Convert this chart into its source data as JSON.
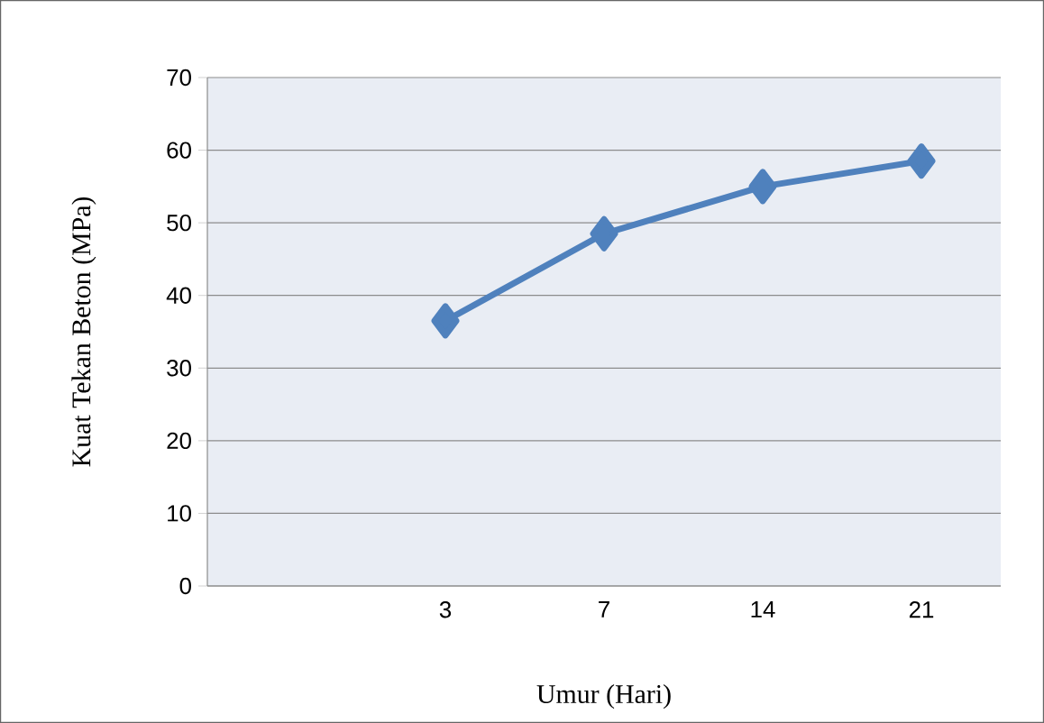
{
  "chart_data": {
    "type": "line",
    "xlabel": "Umur (Hari)",
    "ylabel": "Kuat Tekan Beton (MPa)",
    "categories": [
      null,
      "3",
      "7",
      "14",
      "21"
    ],
    "series": [
      {
        "color": "#4f81bd",
        "values": [
          null,
          36.5,
          48.5,
          55,
          58.5
        ]
      }
    ],
    "ylim": [
      0,
      70
    ],
    "yticks": [
      0,
      10,
      20,
      30,
      40,
      50,
      60,
      70
    ],
    "grid": "y",
    "marker": "diamond",
    "line_style": "solid"
  }
}
